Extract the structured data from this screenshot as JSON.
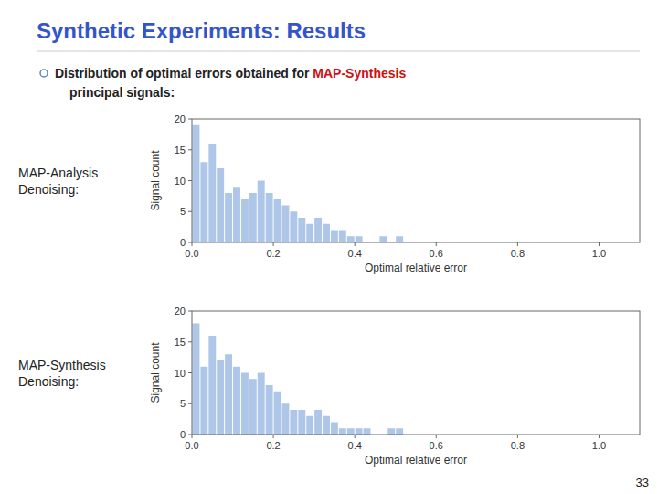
{
  "title": "Synthetic Experiments: Results",
  "title_color": "#3355cc",
  "annotations": [
    {
      "text": "Distribution of optimal errors obtained for "
    },
    {
      "text": "MAP-Synthesis",
      "color": "#cc1111"
    },
    {
      "text": "principal signals:"
    },
    {
      "text": "33"
    }
  ],
  "chart_data": [
    {
      "type": "histogram",
      "title": "MAP-Analysis\nDenoising:",
      "xlabel": "Optimal relative error",
      "ylabel": "Signal count",
      "bins": [
        0,
        0.02,
        0.04,
        0.06,
        0.08,
        0.1,
        0.12,
        0.14,
        0.16,
        0.18,
        0.2,
        0.22,
        0.24,
        0.26,
        0.28,
        0.3,
        0.32,
        0.34,
        0.36,
        0.38,
        0.4,
        0.42,
        0.44,
        0.46,
        0.48,
        0.5,
        0.52,
        0.54,
        0.56,
        0.58,
        0.6,
        0.62,
        0.64,
        0.66,
        0.68,
        0.7,
        0.72,
        0.74,
        0.76,
        0.78,
        0.8,
        0.82,
        0.84,
        0.86,
        0.88,
        0.9,
        0.92,
        0.94,
        0.96,
        0.98,
        1,
        1.02,
        1.04,
        1.06,
        1.08,
        1.1
      ],
      "values": [
        19,
        13,
        16,
        12,
        8,
        9,
        7,
        8,
        10,
        8,
        7,
        6,
        5,
        4,
        3,
        4,
        3,
        2,
        2,
        1,
        1,
        0,
        0,
        1,
        0,
        1,
        0,
        0,
        0,
        0,
        0,
        0,
        0,
        0,
        0,
        0,
        0,
        0,
        0,
        0,
        0,
        0,
        0,
        0,
        0,
        0,
        0,
        0,
        0,
        0,
        0,
        0,
        0,
        0,
        0
      ],
      "color": "#aec6e8",
      "xlim": [
        0,
        1.1
      ],
      "ylim": [
        0,
        20
      ],
      "xticks": [
        {
          "value": 0,
          "label": "0.0"
        },
        0.2,
        0.4,
        0.6,
        0.8,
        {
          "value": 1.0,
          "label": "1.0"
        }
      ],
      "yticks": [
        0,
        5,
        10,
        15,
        20
      ]
    },
    {
      "type": "histogram",
      "title": "MAP-Synthesis\nDenoising:",
      "xlabel": "Optimal relative error",
      "ylabel": "Signal count",
      "bins": [
        0,
        0.02,
        0.04,
        0.06,
        0.08,
        0.1,
        0.12,
        0.14,
        0.16,
        0.18,
        0.2,
        0.22,
        0.24,
        0.26,
        0.28,
        0.3,
        0.32,
        0.34,
        0.36,
        0.38,
        0.4,
        0.42,
        0.44,
        0.46,
        0.48,
        0.5,
        0.52,
        0.54,
        0.56,
        0.58,
        0.6,
        0.62,
        0.64,
        0.66,
        0.68,
        0.7,
        0.72,
        0.74,
        0.76,
        0.78,
        0.8,
        0.82,
        0.84,
        0.86,
        0.88,
        0.9,
        0.92,
        0.94,
        0.96,
        0.98,
        1,
        1.02,
        1.04,
        1.06,
        1.08,
        1.1
      ],
      "values": [
        18,
        11,
        16,
        12,
        13,
        11,
        10,
        9,
        10,
        8,
        7,
        5,
        4,
        4,
        3,
        4,
        3,
        2,
        1,
        1,
        1,
        1,
        0,
        0,
        1,
        1,
        0,
        0,
        0,
        0,
        0,
        0,
        0,
        0,
        0,
        0,
        0,
        0,
        0,
        0,
        0,
        0,
        0,
        0,
        0,
        0,
        0,
        0,
        0,
        0,
        0,
        0,
        0,
        0,
        0
      ],
      "color": "#aec6e8",
      "xlim": [
        0,
        1.1
      ],
      "ylim": [
        0,
        20
      ],
      "xticks": [
        {
          "value": 0,
          "label": "0.0"
        },
        0.2,
        0.4,
        0.6,
        0.8,
        {
          "value": 1.0,
          "label": "1.0"
        }
      ],
      "yticks": [
        0,
        5,
        10,
        15,
        20
      ]
    }
  ]
}
